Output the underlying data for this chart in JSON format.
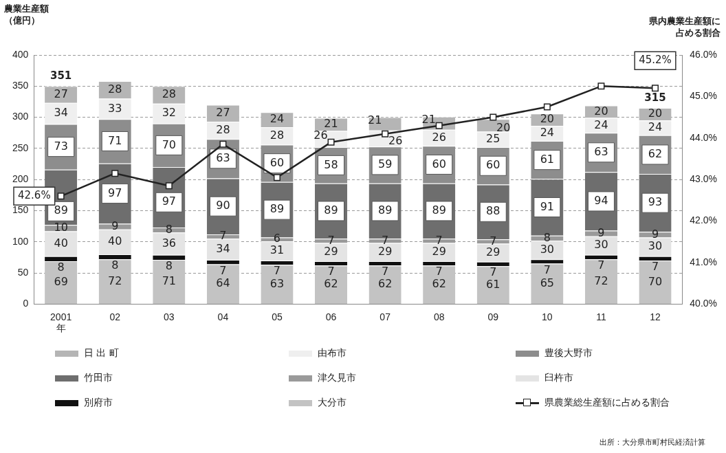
{
  "chart_data": {
    "type": "bar",
    "stacked": true,
    "ylabel": "農業生産額（億円）",
    "y2label": "県内農業生産額に占める割合",
    "categories": [
      "2001\n年",
      "02",
      "03",
      "04",
      "05",
      "06",
      "07",
      "08",
      "09",
      "10",
      "11",
      "12"
    ],
    "series": [
      {
        "name": "大分市",
        "color": "#c3c3c3",
        "values": [
          69,
          72,
          71,
          64,
          63,
          62,
          62,
          62,
          61,
          65,
          72,
          70
        ]
      },
      {
        "name": "別府市",
        "color": "#111111",
        "values": [
          8,
          8,
          8,
          7,
          7,
          7,
          7,
          7,
          7,
          7,
          7,
          7
        ]
      },
      {
        "name": "臼杵市",
        "color": "#e4e4e4",
        "values": [
          40,
          40,
          36,
          34,
          31,
          29,
          29,
          29,
          29,
          30,
          30,
          30
        ]
      },
      {
        "name": "津久見市",
        "color": "#9a9a9a",
        "values": [
          10,
          9,
          8,
          7,
          6,
          7,
          7,
          7,
          7,
          8,
          9,
          9
        ]
      },
      {
        "name": "竹田市",
        "color": "#6e6e6e",
        "values": [
          89,
          97,
          97,
          90,
          89,
          89,
          89,
          89,
          88,
          91,
          94,
          93
        ]
      },
      {
        "name": "豊後大野市",
        "color": "#8d8d8d",
        "values": [
          73,
          71,
          70,
          63,
          60,
          58,
          59,
          60,
          60,
          61,
          63,
          62
        ]
      },
      {
        "name": "由布市",
        "color": "#efefef",
        "values": [
          34,
          33,
          32,
          28,
          28,
          26,
          26,
          26,
          25,
          24,
          24,
          24
        ]
      },
      {
        "name": "日 出 町",
        "color": "#b5b5b5",
        "values": [
          27,
          28,
          28,
          27,
          24,
          21,
          21,
          21,
          20,
          20,
          20,
          20
        ]
      },
      {
        "name": "県農業総生産額に占める割合",
        "type": "line",
        "axis": "y2",
        "color": "#222222",
        "marker": "square",
        "line_style": "solid",
        "values": [
          42.6,
          43.15,
          42.85,
          43.85,
          43.05,
          43.9,
          44.1,
          44.3,
          44.5,
          44.75,
          45.25,
          45.2
        ],
        "value_labels": [
          "42.6%",
          null,
          null,
          null,
          null,
          null,
          null,
          null,
          null,
          null,
          null,
          "45.2%"
        ]
      }
    ],
    "data_labels": true,
    "totals": [
      "351",
      null,
      null,
      null,
      null,
      null,
      null,
      null,
      null,
      null,
      null,
      "315"
    ],
    "ylim": [
      0,
      400
    ],
    "yticks": [
      0,
      50,
      100,
      150,
      200,
      250,
      300,
      350,
      400
    ],
    "y2lim": [
      40,
      46
    ],
    "y2ticks": [
      {
        "value": 40,
        "label": "40.0%"
      },
      {
        "value": 41,
        "label": "41.0%"
      },
      {
        "value": 42,
        "label": "42.0%"
      },
      {
        "value": 43,
        "label": "43.0%"
      },
      {
        "value": 44,
        "label": "44.0%"
      },
      {
        "value": 45,
        "label": "45.0%"
      },
      {
        "value": 46,
        "label": "46.0%"
      }
    ],
    "grid": "y",
    "legend": "bottom",
    "annotations": [
      "出所：大分県市町村民経済計算"
    ]
  }
}
